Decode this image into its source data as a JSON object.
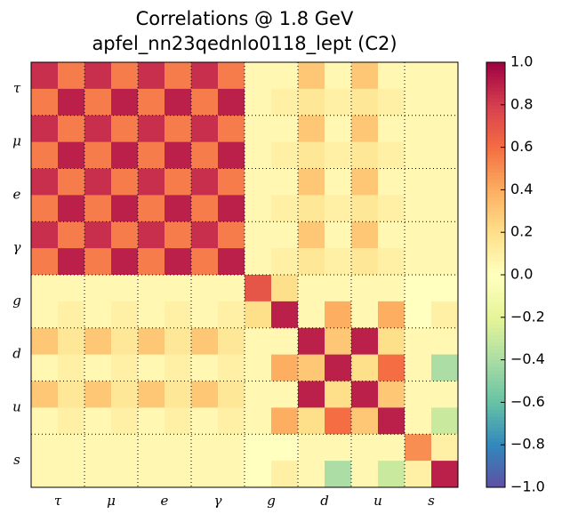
{
  "chart_data": {
    "type": "heatmap",
    "title": "Correlations @ 1.8 GeV",
    "subtitle": "apfel_nn23qednlo0118_lept (C2)",
    "categories": [
      "τ",
      "μ",
      "e",
      "γ",
      "g",
      "d",
      "u",
      "s"
    ],
    "colormap": [
      "#5e4fa2",
      "#3288bd",
      "#66c2a5",
      "#abdda4",
      "#e6f598",
      "#ffffbf",
      "#fee08b",
      "#fdae61",
      "#f46d43",
      "#d53e4f",
      "#9e0142"
    ],
    "zlim": [
      -1,
      1
    ],
    "zticks": [
      {
        "value": 1,
        "label": "1.0"
      },
      0.8,
      0.6,
      0.4,
      0.2,
      {
        "value": 0,
        "label": "0.0"
      },
      {
        "value": -0.2,
        "label": "−0.2"
      },
      {
        "value": -0.4,
        "label": "−0.4"
      },
      {
        "value": -0.6,
        "label": "−0.6"
      },
      {
        "value": -0.8,
        "label": "−0.8"
      },
      {
        "value": -1,
        "label": "−1.0"
      }
    ],
    "z": [
      [
        0.85,
        0.55,
        0.85,
        0.55,
        0.85,
        0.55,
        0.85,
        0.55,
        0.05,
        0.05,
        0.3,
        0.05,
        0.3,
        0.05,
        0.05,
        0.05
      ],
      [
        0.55,
        0.9,
        0.55,
        0.9,
        0.55,
        0.9,
        0.55,
        0.9,
        0.05,
        0.1,
        0.15,
        0.1,
        0.15,
        0.1,
        0.05,
        0.05
      ],
      [
        0.85,
        0.55,
        0.85,
        0.55,
        0.85,
        0.55,
        0.85,
        0.55,
        0.05,
        0.05,
        0.3,
        0.05,
        0.3,
        0.05,
        0.05,
        0.05
      ],
      [
        0.55,
        0.9,
        0.55,
        0.9,
        0.55,
        0.9,
        0.55,
        0.9,
        0.05,
        0.1,
        0.15,
        0.1,
        0.15,
        0.1,
        0.05,
        0.05
      ],
      [
        0.85,
        0.55,
        0.85,
        0.55,
        0.85,
        0.55,
        0.85,
        0.55,
        0.05,
        0.05,
        0.3,
        0.05,
        0.3,
        0.05,
        0.05,
        0.05
      ],
      [
        0.55,
        0.9,
        0.55,
        0.9,
        0.55,
        0.9,
        0.55,
        0.9,
        0.05,
        0.1,
        0.15,
        0.1,
        0.15,
        0.1,
        0.05,
        0.05
      ],
      [
        0.85,
        0.55,
        0.85,
        0.55,
        0.85,
        0.55,
        0.85,
        0.55,
        0.05,
        0.05,
        0.3,
        0.05,
        0.3,
        0.05,
        0.05,
        0.05
      ],
      [
        0.55,
        0.9,
        0.55,
        0.9,
        0.55,
        0.9,
        0.55,
        0.9,
        0.05,
        0.1,
        0.15,
        0.1,
        0.15,
        0.1,
        0.05,
        0.05
      ],
      [
        0.05,
        0.05,
        0.05,
        0.05,
        0.05,
        0.05,
        0.05,
        0.05,
        0.7,
        0.2,
        0.05,
        0.05,
        0.05,
        0.05,
        0,
        0
      ],
      [
        0.05,
        0.1,
        0.05,
        0.1,
        0.05,
        0.1,
        0.05,
        0.1,
        0.2,
        0.9,
        0.05,
        0.4,
        0.05,
        0.4,
        0,
        0.1
      ],
      [
        0.3,
        0.15,
        0.3,
        0.15,
        0.3,
        0.15,
        0.3,
        0.15,
        0.05,
        0.05,
        0.9,
        0.3,
        0.9,
        0.2,
        0.05,
        0.05
      ],
      [
        0.05,
        0.1,
        0.05,
        0.1,
        0.05,
        0.1,
        0.05,
        0.1,
        0.05,
        0.4,
        0.3,
        0.9,
        0.2,
        0.6,
        0.05,
        -0.4
      ],
      [
        0.3,
        0.15,
        0.3,
        0.15,
        0.3,
        0.15,
        0.3,
        0.15,
        0.05,
        0.05,
        0.9,
        0.2,
        0.9,
        0.3,
        0.05,
        0.05
      ],
      [
        0.05,
        0.1,
        0.05,
        0.1,
        0.05,
        0.1,
        0.05,
        0.1,
        0.05,
        0.4,
        0.2,
        0.6,
        0.3,
        0.9,
        0.05,
        -0.3
      ],
      [
        0.05,
        0.05,
        0.05,
        0.05,
        0.05,
        0.05,
        0.05,
        0.05,
        0,
        0,
        0.05,
        0.05,
        0.05,
        0.05,
        0.5,
        0.1
      ],
      [
        0.05,
        0.05,
        0.05,
        0.05,
        0.05,
        0.05,
        0.05,
        0.05,
        0,
        0.1,
        0.05,
        -0.4,
        0.05,
        -0.3,
        0.1,
        0.9
      ]
    ]
  }
}
